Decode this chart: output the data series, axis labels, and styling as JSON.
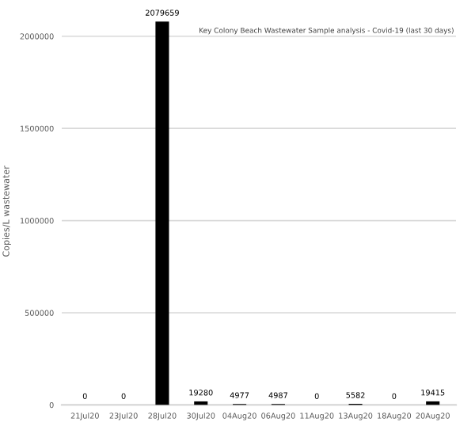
{
  "chart_data": {
    "type": "bar",
    "title": "Key Colony Beach Wastewater Sample analysis - Covid-19 (last 30 days)",
    "ylabel": "Copies/L wastewater",
    "categories": [
      "21Jul20",
      "23Jul20",
      "28Jul20",
      "30Jul20",
      "04Aug20",
      "06Aug20",
      "11Aug20",
      "13Aug20",
      "18Aug20",
      "20Aug20"
    ],
    "values": [
      0,
      0,
      2079659,
      19280,
      4977,
      4987,
      0,
      5582,
      0,
      19415
    ],
    "color": "#000000",
    "ylim": [
      0,
      2100000
    ],
    "yticks": [
      0,
      500000,
      1000000,
      1500000,
      2000000
    ],
    "grid": "y",
    "data_labels": true
  }
}
